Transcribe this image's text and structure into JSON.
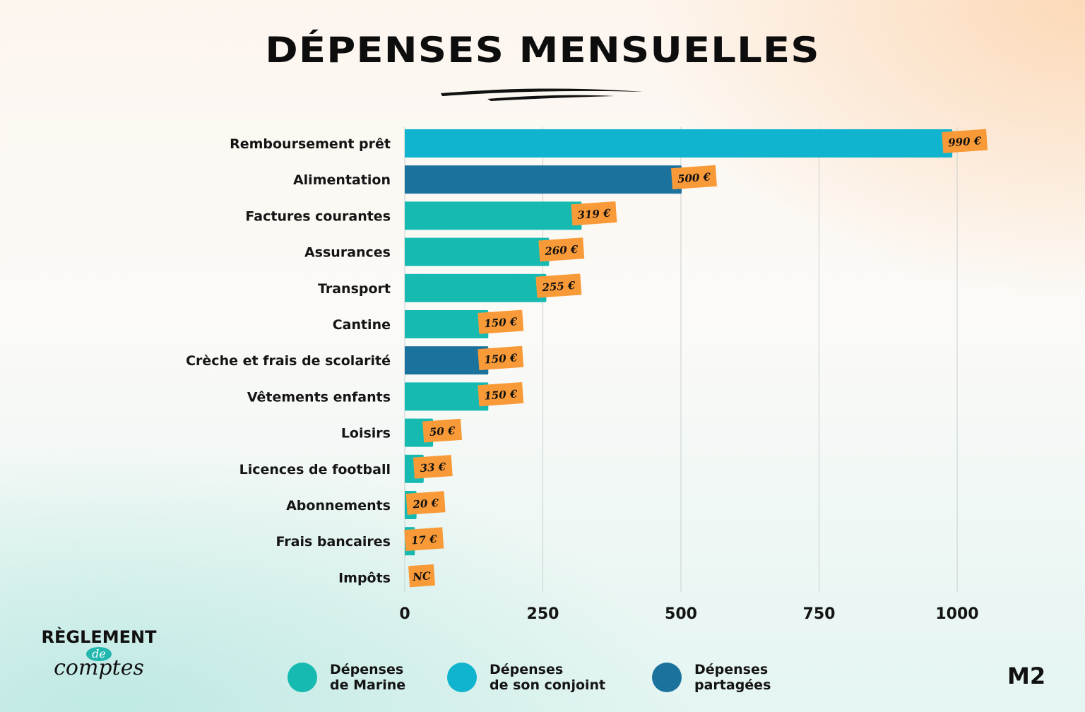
{
  "title": "DÉPENSES MENSUELLES",
  "colors": {
    "marine": "#16bab0",
    "conjoint": "#10b4cf",
    "partagees": "#1b729c",
    "label_bg": "#f99a38",
    "grid": "#c9cfd0"
  },
  "chart_data": {
    "type": "bar",
    "orientation": "horizontal",
    "title": "DÉPENSES MENSUELLES",
    "xlim": [
      0,
      1000
    ],
    "x_ticks": [
      "0",
      "250",
      "500",
      "750",
      "1000"
    ],
    "x_tick_values": [
      0,
      250,
      500,
      750,
      1000
    ],
    "grid": true,
    "categories": [
      "Remboursement prêt",
      "Alimentation",
      "Factures courantes",
      "Assurances",
      "Transport",
      "Cantine",
      "Crèche et frais de scolarité",
      "Vêtements enfants",
      "Loisirs",
      "Licences de football",
      "Abonnements",
      "Frais bancaires",
      "Impôts"
    ],
    "values": [
      990,
      500,
      319,
      260,
      255,
      150,
      150,
      150,
      50,
      33,
      20,
      17,
      null
    ],
    "value_labels": [
      "990 €",
      "500 €",
      "319 €",
      "260 €",
      "255 €",
      "150 €",
      "150 €",
      "150 €",
      "50 €",
      "33 €",
      "20 €",
      "17 €",
      "NC"
    ],
    "groups": [
      "conjoint",
      "partagees",
      "marine",
      "marine",
      "marine",
      "marine",
      "partagees",
      "marine",
      "marine",
      "marine",
      "marine",
      "marine",
      "marine"
    ],
    "legend": [
      {
        "key": "marine",
        "line1": "Dépenses",
        "line2": "de Marine"
      },
      {
        "key": "conjoint",
        "line1": "Dépenses",
        "line2": "de son conjoint"
      },
      {
        "key": "partagees",
        "line1": "Dépenses",
        "line2": "partagées"
      }
    ],
    "legend_position": "bottom"
  },
  "logo_left": {
    "top": "RÈGLEMENT",
    "mid": "de",
    "bottom": "comptes"
  },
  "logo_right": "M2"
}
